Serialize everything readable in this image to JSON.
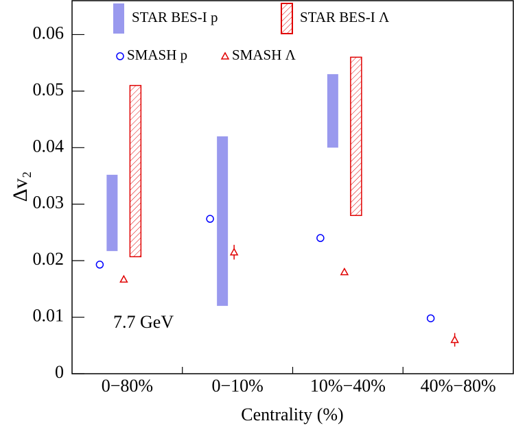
{
  "chart_data": {
    "type": "range-scatter",
    "x_label": "Centrality (%)",
    "y_label": "Δv₂",
    "annotation": "7.7 GeV",
    "categories": [
      "0−80%",
      "0−10%",
      "10%−40%",
      "40%−80%"
    ],
    "ylim": [
      0,
      0.066
    ],
    "yticks": [
      0,
      0.01,
      0.02,
      0.03,
      0.04,
      0.05,
      0.06
    ],
    "series": [
      {
        "name": "SMASH p",
        "kind": "circle",
        "color": "#0000ff",
        "values": [
          0.0193,
          0.0274,
          0.024,
          0.0098
        ]
      },
      {
        "name": "STAR BES-I p",
        "kind": "band",
        "color": "#9999ee",
        "low": [
          0.0217,
          0.012,
          0.04,
          null
        ],
        "high": [
          0.0352,
          0.042,
          0.053,
          null
        ]
      },
      {
        "name": "SMASH Λ",
        "kind": "triangle",
        "color": "#e00000",
        "values": [
          0.0167,
          0.0215,
          0.018,
          0.006
        ],
        "errors": [
          0.0003,
          0.0013,
          0.0005,
          0.0012
        ]
      },
      {
        "name": "STAR BES-I Λ",
        "kind": "hatched",
        "color": "#e00000",
        "low": [
          0.0207,
          null,
          0.028,
          null
        ],
        "high": [
          0.051,
          null,
          0.056,
          null
        ]
      }
    ]
  }
}
